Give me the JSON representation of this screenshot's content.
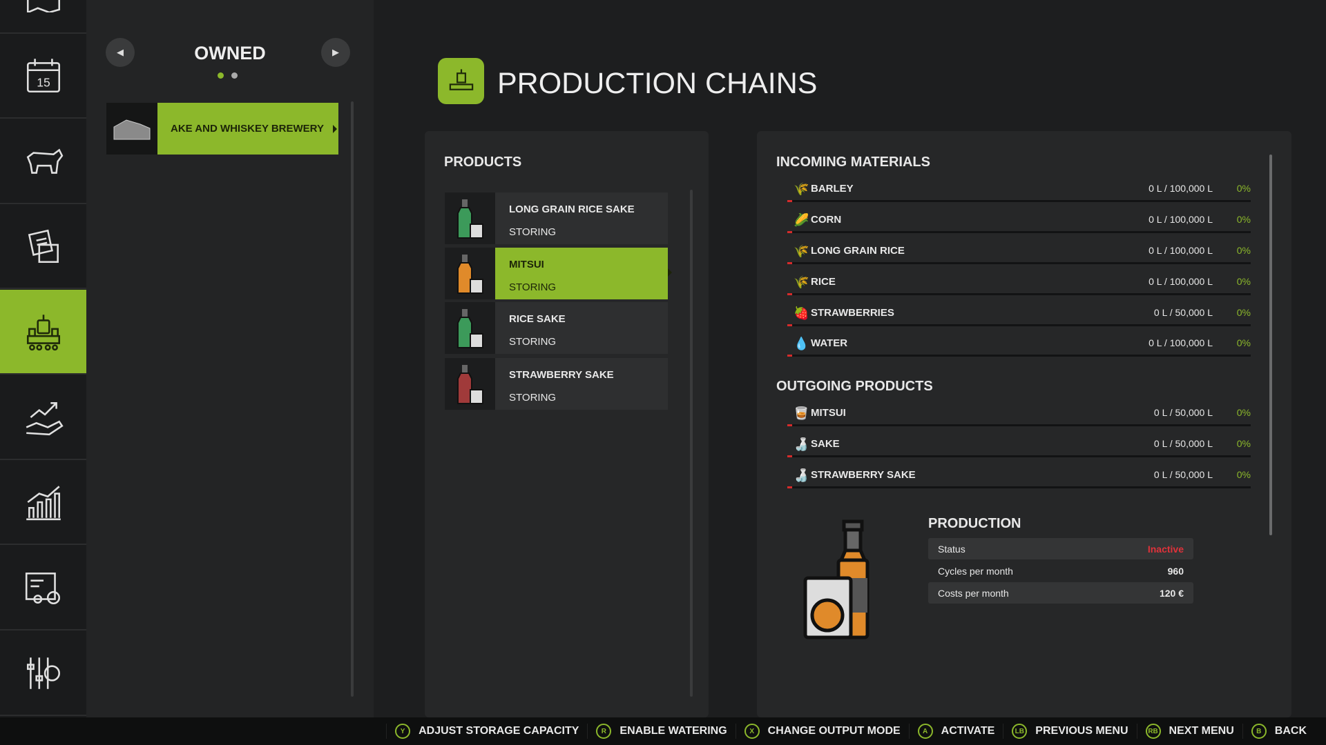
{
  "sidebar": {
    "items": [
      {
        "icon": "map-icon"
      },
      {
        "icon": "calendar-icon",
        "label": "15"
      },
      {
        "icon": "cow-icon"
      },
      {
        "icon": "contracts-icon"
      },
      {
        "icon": "production-icon",
        "selected": true
      },
      {
        "icon": "finance-icon"
      },
      {
        "icon": "statistics-icon"
      },
      {
        "icon": "vehicle-shop-icon"
      },
      {
        "icon": "settings-icon"
      }
    ]
  },
  "owned": {
    "title": "OWNED",
    "page": 1,
    "pages": 2,
    "items": [
      {
        "label": "AKE AND WHISKEY BREWERY",
        "selected": true
      }
    ]
  },
  "header": {
    "title": "PRODUCTION CHAINS"
  },
  "products": {
    "title": "PRODUCTS",
    "items": [
      {
        "name": "LONG GRAIN RICE SAKE",
        "status": "STORING",
        "color": "#3c9a5a"
      },
      {
        "name": "MITSUI",
        "status": "STORING",
        "color": "#e08a2a",
        "selected": true
      },
      {
        "name": "RICE SAKE",
        "status": "STORING",
        "color": "#3c9a5a"
      },
      {
        "name": "STRAWBERRY SAKE",
        "status": "STORING",
        "color": "#a03a3a"
      }
    ]
  },
  "incoming": {
    "title": "INCOMING MATERIALS",
    "items": [
      {
        "name": "BARLEY",
        "value": "0 L / 100,000 L",
        "pct": "0%",
        "icon": "🌾"
      },
      {
        "name": "CORN",
        "value": "0 L / 100,000 L",
        "pct": "0%",
        "icon": "🌽"
      },
      {
        "name": "LONG GRAIN RICE",
        "value": "0 L / 100,000 L",
        "pct": "0%",
        "icon": "🌾"
      },
      {
        "name": "RICE",
        "value": "0 L / 100,000 L",
        "pct": "0%",
        "icon": "🌾"
      },
      {
        "name": "STRAWBERRIES",
        "value": "0 L / 50,000 L",
        "pct": "0%",
        "icon": "🍓"
      },
      {
        "name": "WATER",
        "value": "0 L / 100,000 L",
        "pct": "0%",
        "icon": "💧"
      }
    ]
  },
  "outgoing": {
    "title": "OUTGOING PRODUCTS",
    "items": [
      {
        "name": "MITSUI",
        "value": "0 L / 50,000 L",
        "pct": "0%",
        "icon": "🥃"
      },
      {
        "name": "SAKE",
        "value": "0 L / 50,000 L",
        "pct": "0%",
        "icon": "🍶"
      },
      {
        "name": "STRAWBERRY SAKE",
        "value": "0 L / 50,000 L",
        "pct": "0%",
        "icon": "🍶"
      }
    ]
  },
  "production": {
    "title": "PRODUCTION",
    "rows": [
      {
        "label": "Status",
        "value": "Inactive"
      },
      {
        "label": "Cycles per month",
        "value": "960"
      },
      {
        "label": "Costs per month",
        "value": "120 €"
      }
    ]
  },
  "bottom": [
    {
      "key": "Y",
      "label": "ADJUST STORAGE CAPACITY"
    },
    {
      "key": "R",
      "label": "ENABLE WATERING"
    },
    {
      "key": "X",
      "label": "CHANGE OUTPUT MODE"
    },
    {
      "key": "A",
      "label": "ACTIVATE"
    },
    {
      "key": "LB",
      "label": "PREVIOUS MENU"
    },
    {
      "key": "RB",
      "label": "NEXT MENU"
    },
    {
      "key": "B",
      "label": "BACK"
    }
  ],
  "colors": {
    "accent": "#8cb82b",
    "inactive": "#e0323a",
    "bar_fill": "#d62b2b"
  }
}
